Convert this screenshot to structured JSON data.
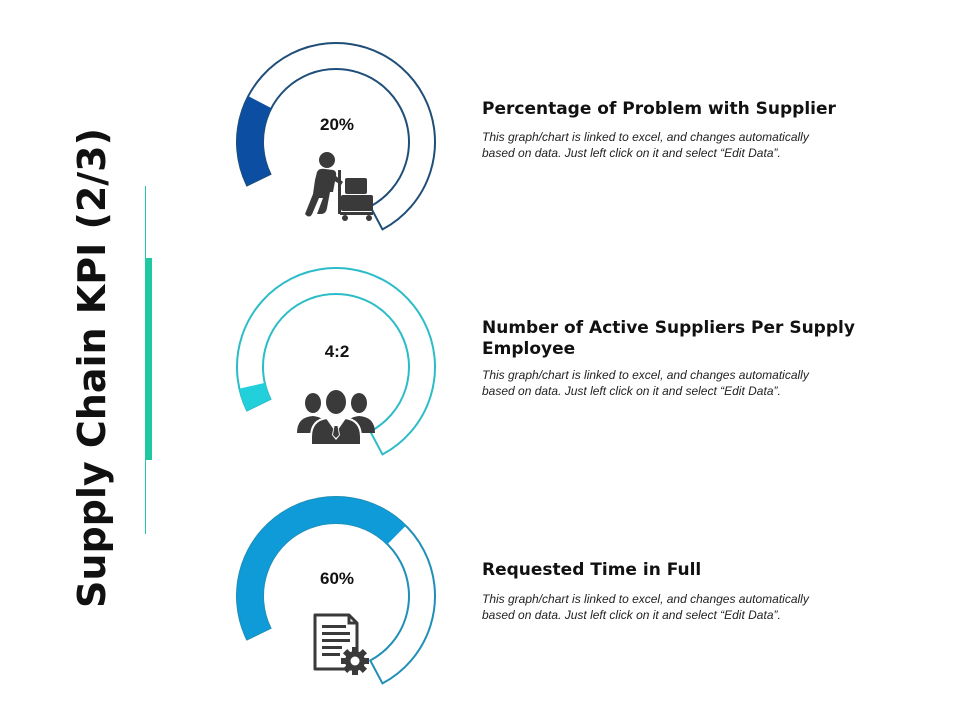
{
  "slide": {
    "title": "Supply Chain KPI (2/3)",
    "accent_color": "#1fc8a0"
  },
  "kpis": [
    {
      "value": "20%",
      "fill_fraction": 0.2,
      "title": "Percentage of Problem with Supplier",
      "desc_line1": "This graph/chart is linked to excel, and changes automatically",
      "desc_line2": "based on data. Just left click on it and select “Edit Data”.",
      "icon": "worker-with-trolley-icon",
      "ring_color": "#1f4e79",
      "fill_color": "#0b4ea2"
    },
    {
      "value": "4:2",
      "fill_fraction": 0.05,
      "title": "Number of Active Suppliers Per Supply Employee",
      "title_line1": "Number of Active Suppliers Per Supply",
      "title_line2": "Employee",
      "desc_line1": "This graph/chart is linked to excel, and changes automatically",
      "desc_line2": "based on data. Just left click on it and select “Edit Data”.",
      "icon": "business-team-icon",
      "ring_color": "#2bbcc8",
      "fill_color": "#22d0dc"
    },
    {
      "value": "60%",
      "fill_fraction": 0.6,
      "title": "Requested Time in Full",
      "desc_line1": "This graph/chart is linked to excel, and changes automatically",
      "desc_line2": "based on data. Just left click on it and select “Edit Data”.",
      "icon": "document-gear-icon",
      "ring_color": "#1f8fb8",
      "fill_color": "#0e9bd8"
    }
  ]
}
